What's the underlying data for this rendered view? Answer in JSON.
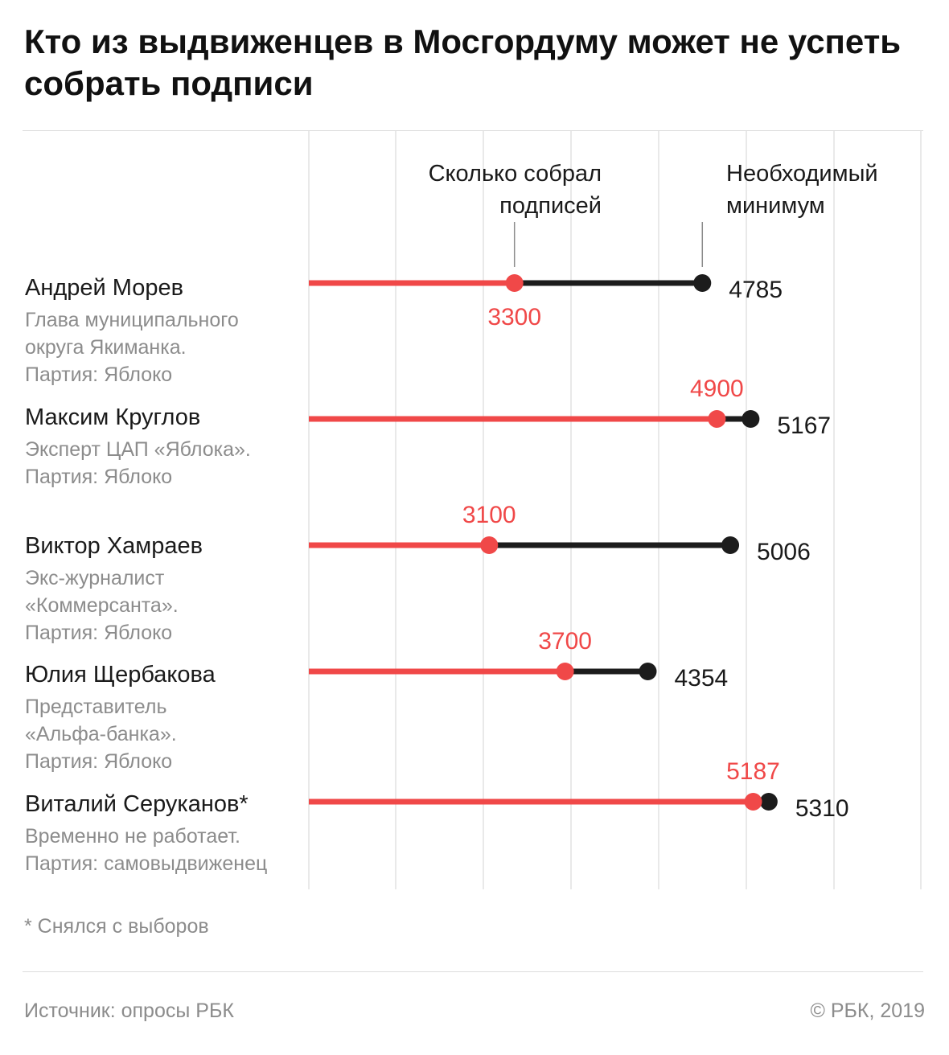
{
  "title": "Кто из выдвиженцев в Мосгордуму может не успеть собрать подписи",
  "legend": {
    "collected": [
      "Сколько собрал",
      "подписей"
    ],
    "minimum": [
      "Необходимый",
      "минимум"
    ]
  },
  "footnote": "* Снялся с выборов",
  "source": "Источник: опросы РБК",
  "copyright": "© РБК, 2019",
  "colors": {
    "collected": "#f04848",
    "required": "#1c1c1c",
    "grid": "#e2e2e2",
    "muted": "#8c8c8c"
  },
  "chart_data": {
    "type": "dumbbell",
    "x_unit": "подписи",
    "series": [
      {
        "name": "Сколько собрал подписей",
        "color": "#f04848"
      },
      {
        "name": "Необходимый минимум",
        "color": "#1c1c1c"
      }
    ],
    "rows": [
      {
        "name": "Андрей Морев",
        "description": [
          "Глава муниципального",
          "округа Якиманка.",
          "Партия: Яблоко"
        ],
        "collected": 3300,
        "required": 4785,
        "collected_label_below": true
      },
      {
        "name": "Максим Круглов",
        "description": [
          "Эксперт ЦАП «Яблока».",
          "Партия: Яблоко"
        ],
        "collected": 4900,
        "required": 5167,
        "collected_label_below": false
      },
      {
        "name": "Виктор Хамраев",
        "description": [
          "Экс-журналист",
          "«Коммерсанта».",
          "Партия: Яблоко"
        ],
        "collected": 3100,
        "required": 5006,
        "collected_label_below": false
      },
      {
        "name": "Юлия Щербакова",
        "description": [
          "Представитель",
          "«Альфа-банка».",
          "Партия: Яблоко"
        ],
        "collected": 3700,
        "required": 4354,
        "collected_label_below": false
      },
      {
        "name": "Виталий Серуканов*",
        "description": [
          "Временно не работает.",
          "Партия: самовыдвиженец"
        ],
        "collected": 5187,
        "required": 5310,
        "collected_label_below": false
      }
    ]
  }
}
